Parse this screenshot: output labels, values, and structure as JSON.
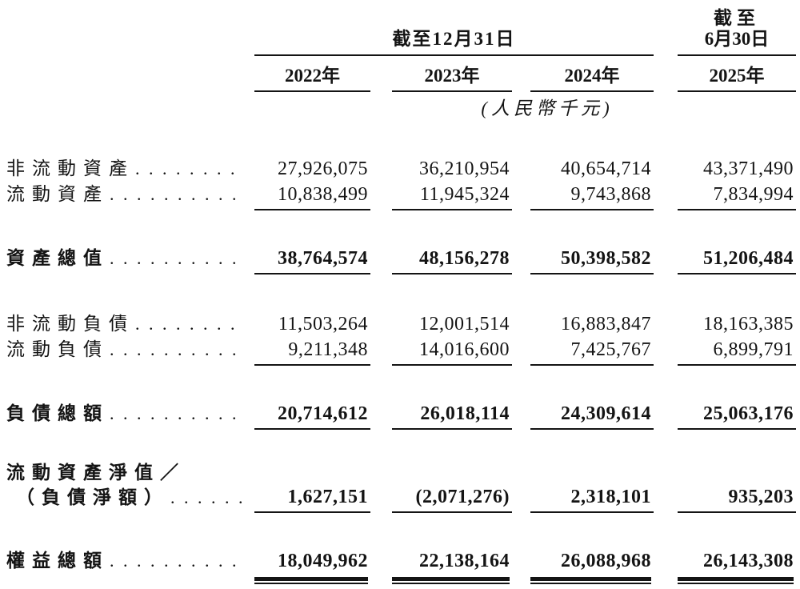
{
  "header": {
    "dec_span_label": "截至12月31日",
    "jun_line1": "截至",
    "jun_line2": "6月30日",
    "years": [
      "2022年",
      "2023年",
      "2024年",
      "2025年"
    ],
    "unit_note": "(人民幣千元)"
  },
  "rows": [
    {
      "label": "非流動資產",
      "dots": ". . . . . . . .",
      "values": [
        "27,926,075",
        "36,210,954",
        "40,654,714",
        "43,371,490"
      ]
    },
    {
      "label": "流動資產",
      "dots": ". . . . . . . . . .",
      "values": [
        "10,838,499",
        "11,945,324",
        "9,743,868",
        "7,834,994"
      ]
    },
    {
      "label": "資產總值",
      "dots": ". . . . . . . . . .",
      "values": [
        "38,764,574",
        "48,156,278",
        "50,398,582",
        "51,206,484"
      ]
    },
    {
      "label": "非流動負債",
      "dots": ". . . . . . . .",
      "values": [
        "11,503,264",
        "12,001,514",
        "16,883,847",
        "18,163,385"
      ]
    },
    {
      "label": "流動負債",
      "dots": ". . . . . . . . . .",
      "values": [
        "9,211,348",
        "14,016,600",
        "7,425,767",
        "6,899,791"
      ]
    },
    {
      "label": "負債總額",
      "dots": ". . . . . . . . . .",
      "values": [
        "20,714,612",
        "26,018,114",
        "24,309,614",
        "25,063,176"
      ]
    },
    {
      "label": "流動資產淨值／",
      "label2": "（負債淨額）",
      "dots": ". . . . . .",
      "values": [
        "1,627,151",
        "(2,071,276)",
        "2,318,101",
        "935,203"
      ]
    },
    {
      "label": "權益總額",
      "dots": ". . . . . . . . . .",
      "values": [
        "18,049,962",
        "22,138,164",
        "26,088,968",
        "26,143,308"
      ]
    }
  ]
}
